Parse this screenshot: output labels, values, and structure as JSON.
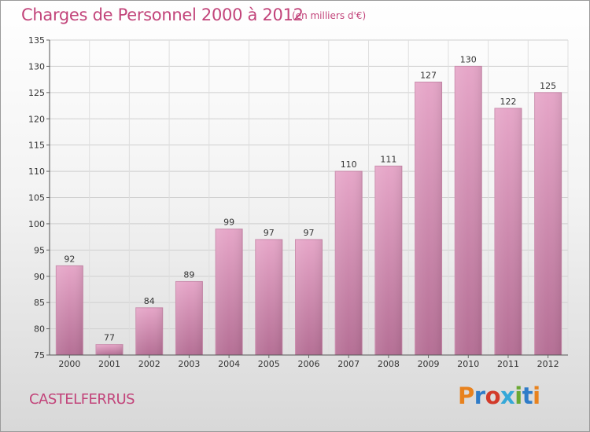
{
  "header": {
    "title": "Charges de Personnel 2000 à 2012",
    "unit": "(en milliers d'€)"
  },
  "footer": {
    "commune": "CASTELFERRUS",
    "brand": "Proxiti",
    "brand_colors": [
      "#e8821e",
      "#2f7cc8",
      "#d23a2a",
      "#35a8d8",
      "#6aa832",
      "#2f7cc8",
      "#e8821e"
    ]
  },
  "chart_data": {
    "type": "bar",
    "title": "Charges de Personnel 2000 à 2012",
    "subtitle": "(en milliers d'€)",
    "xlabel": "",
    "ylabel": "",
    "categories": [
      "2000",
      "2001",
      "2002",
      "2003",
      "2004",
      "2005",
      "2006",
      "2007",
      "2008",
      "2009",
      "2010",
      "2011",
      "2012"
    ],
    "values": [
      92,
      77,
      84,
      89,
      99,
      97,
      97,
      110,
      111,
      127,
      130,
      122,
      125
    ],
    "ylim": [
      75,
      135
    ],
    "yticks": [
      75,
      80,
      85,
      90,
      95,
      100,
      105,
      110,
      115,
      120,
      125,
      130,
      135
    ],
    "grid": true,
    "bar_color": "#d98bb3"
  }
}
